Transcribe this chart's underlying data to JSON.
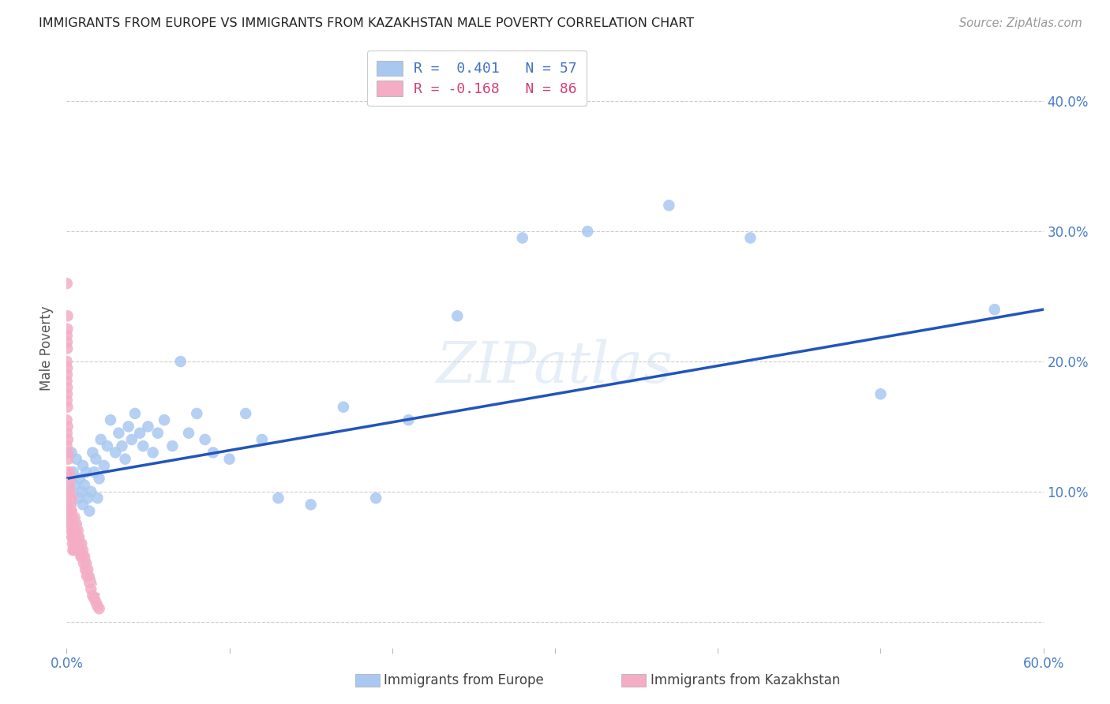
{
  "title": "IMMIGRANTS FROM EUROPE VS IMMIGRANTS FROM KAZAKHSTAN MALE POVERTY CORRELATION CHART",
  "source": "Source: ZipAtlas.com",
  "ylabel": "Male Poverty",
  "xlim": [
    0.0,
    0.6
  ],
  "ylim": [
    -0.02,
    0.44
  ],
  "ytick_vals": [
    0.0,
    0.1,
    0.2,
    0.3,
    0.4
  ],
  "ytick_labels": [
    "",
    "10.0%",
    "20.0%",
    "30.0%",
    "40.0%"
  ],
  "xtick_vals": [
    0.0,
    0.1,
    0.2,
    0.3,
    0.4,
    0.5,
    0.6
  ],
  "xtick_labels": [
    "0.0%",
    "",
    "",
    "",
    "",
    "",
    "60.0%"
  ],
  "r_europe": 0.401,
  "n_europe": 57,
  "r_kazakhstan": -0.168,
  "n_kazakhstan": 86,
  "europe_color": "#a8c8f0",
  "kazakhstan_color": "#f4adc4",
  "trend_europe_color": "#2255bb",
  "trend_kazakhstan_color": "#e8b8cc",
  "background_color": "#ffffff",
  "grid_color": "#cccccc",
  "europe_x": [
    0.003,
    0.004,
    0.005,
    0.006,
    0.007,
    0.008,
    0.009,
    0.01,
    0.01,
    0.011,
    0.012,
    0.013,
    0.014,
    0.015,
    0.016,
    0.017,
    0.018,
    0.019,
    0.02,
    0.021,
    0.023,
    0.025,
    0.027,
    0.03,
    0.032,
    0.034,
    0.036,
    0.038,
    0.04,
    0.042,
    0.045,
    0.047,
    0.05,
    0.053,
    0.056,
    0.06,
    0.065,
    0.07,
    0.075,
    0.08,
    0.085,
    0.09,
    0.1,
    0.11,
    0.12,
    0.13,
    0.15,
    0.17,
    0.19,
    0.21,
    0.24,
    0.28,
    0.32,
    0.37,
    0.42,
    0.5,
    0.57
  ],
  "europe_y": [
    0.13,
    0.115,
    0.105,
    0.125,
    0.095,
    0.11,
    0.1,
    0.12,
    0.09,
    0.105,
    0.115,
    0.095,
    0.085,
    0.1,
    0.13,
    0.115,
    0.125,
    0.095,
    0.11,
    0.14,
    0.12,
    0.135,
    0.155,
    0.13,
    0.145,
    0.135,
    0.125,
    0.15,
    0.14,
    0.16,
    0.145,
    0.135,
    0.15,
    0.13,
    0.145,
    0.155,
    0.135,
    0.2,
    0.145,
    0.16,
    0.14,
    0.13,
    0.125,
    0.16,
    0.14,
    0.095,
    0.09,
    0.165,
    0.095,
    0.155,
    0.235,
    0.295,
    0.3,
    0.32,
    0.295,
    0.175,
    0.24
  ],
  "kazakhstan_x": [
    0.0002,
    0.0003,
    0.0004,
    0.0005,
    0.0006,
    0.0007,
    0.0008,
    0.0009,
    0.001,
    0.0011,
    0.0012,
    0.0013,
    0.0014,
    0.0015,
    0.0016,
    0.0017,
    0.0018,
    0.0019,
    0.002,
    0.0021,
    0.0022,
    0.0023,
    0.0024,
    0.0025,
    0.0026,
    0.0027,
    0.0028,
    0.0029,
    0.003,
    0.0031,
    0.0032,
    0.0033,
    0.0034,
    0.0035,
    0.0036,
    0.0037,
    0.0038,
    0.0039,
    0.004,
    0.0042,
    0.0044,
    0.0046,
    0.0048,
    0.005,
    0.0052,
    0.0055,
    0.0058,
    0.006,
    0.0063,
    0.0066,
    0.007,
    0.0073,
    0.0076,
    0.008,
    0.0084,
    0.0088,
    0.0092,
    0.0096,
    0.01,
    0.0105,
    0.011,
    0.0115,
    0.012,
    0.0125,
    0.013,
    0.0135,
    0.014,
    0.015,
    0.016,
    0.017,
    0.018,
    0.019,
    0.02,
    0.0001,
    0.0001,
    0.0001,
    0.0001,
    0.0002,
    0.0002,
    0.0002,
    0.0003,
    0.0003,
    0.0004,
    0.0004,
    0.0005,
    0.0006
  ],
  "kazakhstan_y": [
    0.26,
    0.175,
    0.195,
    0.165,
    0.15,
    0.14,
    0.13,
    0.115,
    0.125,
    0.11,
    0.105,
    0.095,
    0.1,
    0.09,
    0.115,
    0.105,
    0.095,
    0.085,
    0.11,
    0.1,
    0.09,
    0.08,
    0.095,
    0.085,
    0.075,
    0.09,
    0.08,
    0.07,
    0.095,
    0.085,
    0.075,
    0.065,
    0.08,
    0.07,
    0.06,
    0.075,
    0.065,
    0.055,
    0.075,
    0.065,
    0.055,
    0.07,
    0.06,
    0.08,
    0.065,
    0.07,
    0.06,
    0.075,
    0.055,
    0.065,
    0.07,
    0.055,
    0.065,
    0.06,
    0.055,
    0.05,
    0.06,
    0.05,
    0.055,
    0.045,
    0.05,
    0.04,
    0.045,
    0.035,
    0.04,
    0.035,
    0.03,
    0.025,
    0.02,
    0.018,
    0.015,
    0.012,
    0.01,
    0.2,
    0.185,
    0.155,
    0.135,
    0.22,
    0.17,
    0.145,
    0.215,
    0.19,
    0.21,
    0.18,
    0.225,
    0.235
  ],
  "watermark": "ZIPatlas",
  "legend_label_europe": "R =  0.401   N = 57",
  "legend_label_kazakhstan": "R = -0.168   N = 86",
  "legend_color_europe": "#4472c4",
  "legend_color_kazakhstan": "#c0506878"
}
